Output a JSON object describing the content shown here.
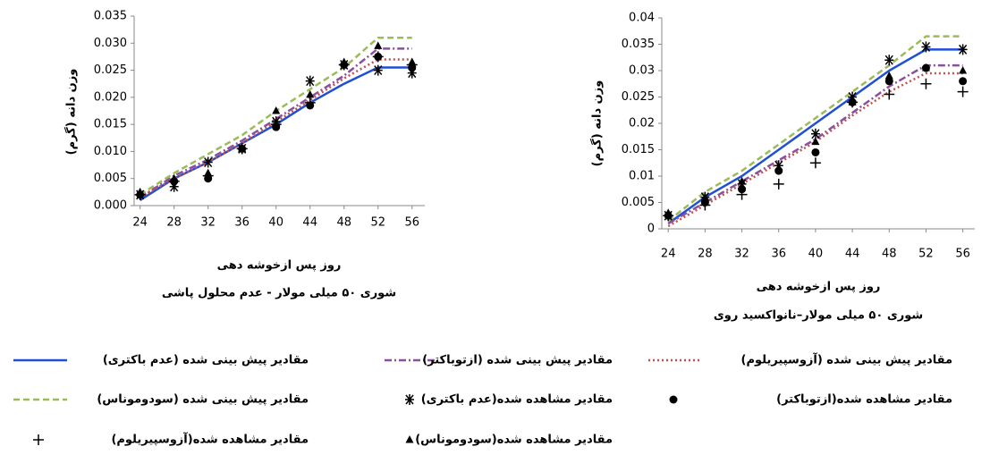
{
  "chart_data": [
    {
      "type": "line",
      "x_label": "روز پس ازخوشه دهی",
      "subtitle": "شوری ۵۰ میلی مولار - عدم محلول پاشی",
      "y_label": "وزن دانه (گرم)",
      "x": [
        24,
        28,
        32,
        36,
        40,
        44,
        48,
        52,
        56
      ],
      "xlim": [
        23.3,
        57.5
      ],
      "xticks": [
        24,
        28,
        32,
        36,
        40,
        44,
        48,
        52,
        56
      ],
      "ylim": [
        0,
        0.035
      ],
      "yticks": [
        {
          "value": 0,
          "label": "0.000"
        },
        {
          "value": 0.005,
          "label": "0.005"
        },
        {
          "value": 0.01,
          "label": "0.010"
        },
        {
          "value": 0.015,
          "label": "0.015"
        },
        {
          "value": 0.02,
          "label": "0.020"
        },
        {
          "value": 0.025,
          "label": "0.025"
        },
        {
          "value": 0.03,
          "label": "0.030"
        },
        {
          "value": 0.035,
          "label": "0.035"
        }
      ],
      "series": [
        {
          "name": "مقادیر پیش بینی شده (عدم باکتری)",
          "color": "#1f4fd6",
          "dash": "solid",
          "values": [
            0.001,
            0.005,
            0.008,
            0.0115,
            0.015,
            0.019,
            0.0225,
            0.0255,
            0.0255
          ]
        },
        {
          "name": "مقادیر پیش بینی شده (ازتوباکتر)",
          "color": "#8b4f9b",
          "dash": "dashdot",
          "values": [
            0.0015,
            0.0055,
            0.0085,
            0.012,
            0.016,
            0.02,
            0.024,
            0.029,
            0.029
          ]
        },
        {
          "name": "مقادیر پیش بینی شده (آزوسپیریلوم)",
          "color": "#c0504d",
          "dash": "dotted",
          "values": [
            0.0015,
            0.005,
            0.008,
            0.0115,
            0.0155,
            0.0195,
            0.0235,
            0.027,
            0.027
          ]
        },
        {
          "name": "مقادیر پیش بینی شده (سودوموناس)",
          "color": "#9bbb59",
          "dash": "dashed",
          "values": [
            0.002,
            0.006,
            0.0095,
            0.013,
            0.0175,
            0.0215,
            0.0255,
            0.031,
            0.031
          ]
        },
        {
          "name": "مقادیر مشاهده شده(عدم باکتری)",
          "color": "#000000",
          "marker": "asterisk",
          "values": [
            0.002,
            0.0035,
            0.008,
            0.0105,
            0.0155,
            0.023,
            0.026,
            0.025,
            0.0245
          ]
        },
        {
          "name": "مقادیر مشاهده شده(ازتوباکتر)",
          "color": "#000000",
          "marker": "dot",
          "values": [
            0.002,
            0.0045,
            0.005,
            0.0105,
            0.0145,
            0.0185,
            0.026,
            0.0275,
            0.0255
          ]
        },
        {
          "name": "مقادیر مشاهده شده(آزوسپیریلوم)",
          "color": "#000000",
          "marker": "plus",
          "values": [
            0.002,
            0.0045,
            0.0055,
            0.0105,
            0.015,
            0.019,
            0.026,
            0.0275,
            0.026
          ]
        },
        {
          "name": "مقادیر مشاهده شده(سودوموناس)",
          "color": "#000000",
          "marker": "triangle",
          "values": [
            0.0025,
            0.005,
            0.006,
            0.0105,
            0.0175,
            0.0205,
            0.0265,
            0.0295,
            0.0265
          ]
        }
      ]
    },
    {
      "type": "line",
      "x_label": "روز پس ازخوشه دهی",
      "subtitle": "شوری ۵۰ میلی مولار–نانواکسید روی",
      "y_label": "وزن دانه (گرم)",
      "x": [
        24,
        28,
        32,
        36,
        40,
        44,
        48,
        52,
        56
      ],
      "xlim": [
        23.3,
        57.3
      ],
      "xticks": [
        24,
        28,
        32,
        36,
        40,
        44,
        48,
        52,
        56
      ],
      "ylim": [
        0,
        0.04
      ],
      "yticks": [
        0,
        0.005,
        0.01,
        0.015,
        0.02,
        0.025,
        0.03,
        0.035,
        0.04
      ],
      "series": [
        {
          "color": "#1f4fd6",
          "dash": "solid",
          "values": [
            0.001,
            0.006,
            0.01,
            0.015,
            0.02,
            0.025,
            0.03,
            0.034,
            0.034
          ]
        },
        {
          "color": "#8b4f9b",
          "dash": "dashdot",
          "values": [
            0.001,
            0.005,
            0.009,
            0.013,
            0.017,
            0.022,
            0.027,
            0.031,
            0.031
          ]
        },
        {
          "color": "#c0504d",
          "dash": "dotted",
          "values": [
            0.0005,
            0.0045,
            0.0085,
            0.0125,
            0.0165,
            0.0215,
            0.026,
            0.0295,
            0.0295
          ]
        },
        {
          "color": "#9bbb59",
          "dash": "dashed",
          "values": [
            0.0015,
            0.007,
            0.011,
            0.016,
            0.021,
            0.026,
            0.031,
            0.0365,
            0.0365
          ]
        },
        {
          "color": "#000000",
          "marker": "asterisk",
          "values": [
            0.0025,
            0.006,
            0.0085,
            0.012,
            0.018,
            0.025,
            0.032,
            0.0345,
            0.034
          ]
        },
        {
          "color": "#000000",
          "marker": "dot",
          "values": [
            0.0025,
            0.005,
            0.0075,
            0.011,
            0.0145,
            0.024,
            0.028,
            0.0305,
            0.028
          ]
        },
        {
          "color": "#000000",
          "marker": "plus",
          "values": [
            0.0025,
            0.0045,
            0.0065,
            0.0085,
            0.0125,
            0.024,
            0.0255,
            0.0275,
            0.026
          ]
        },
        {
          "color": "#000000",
          "marker": "triangle",
          "values": [
            0.003,
            0.006,
            0.009,
            0.0115,
            0.0165,
            0.024,
            0.029,
            0.0305,
            0.03
          ]
        }
      ]
    }
  ]
}
